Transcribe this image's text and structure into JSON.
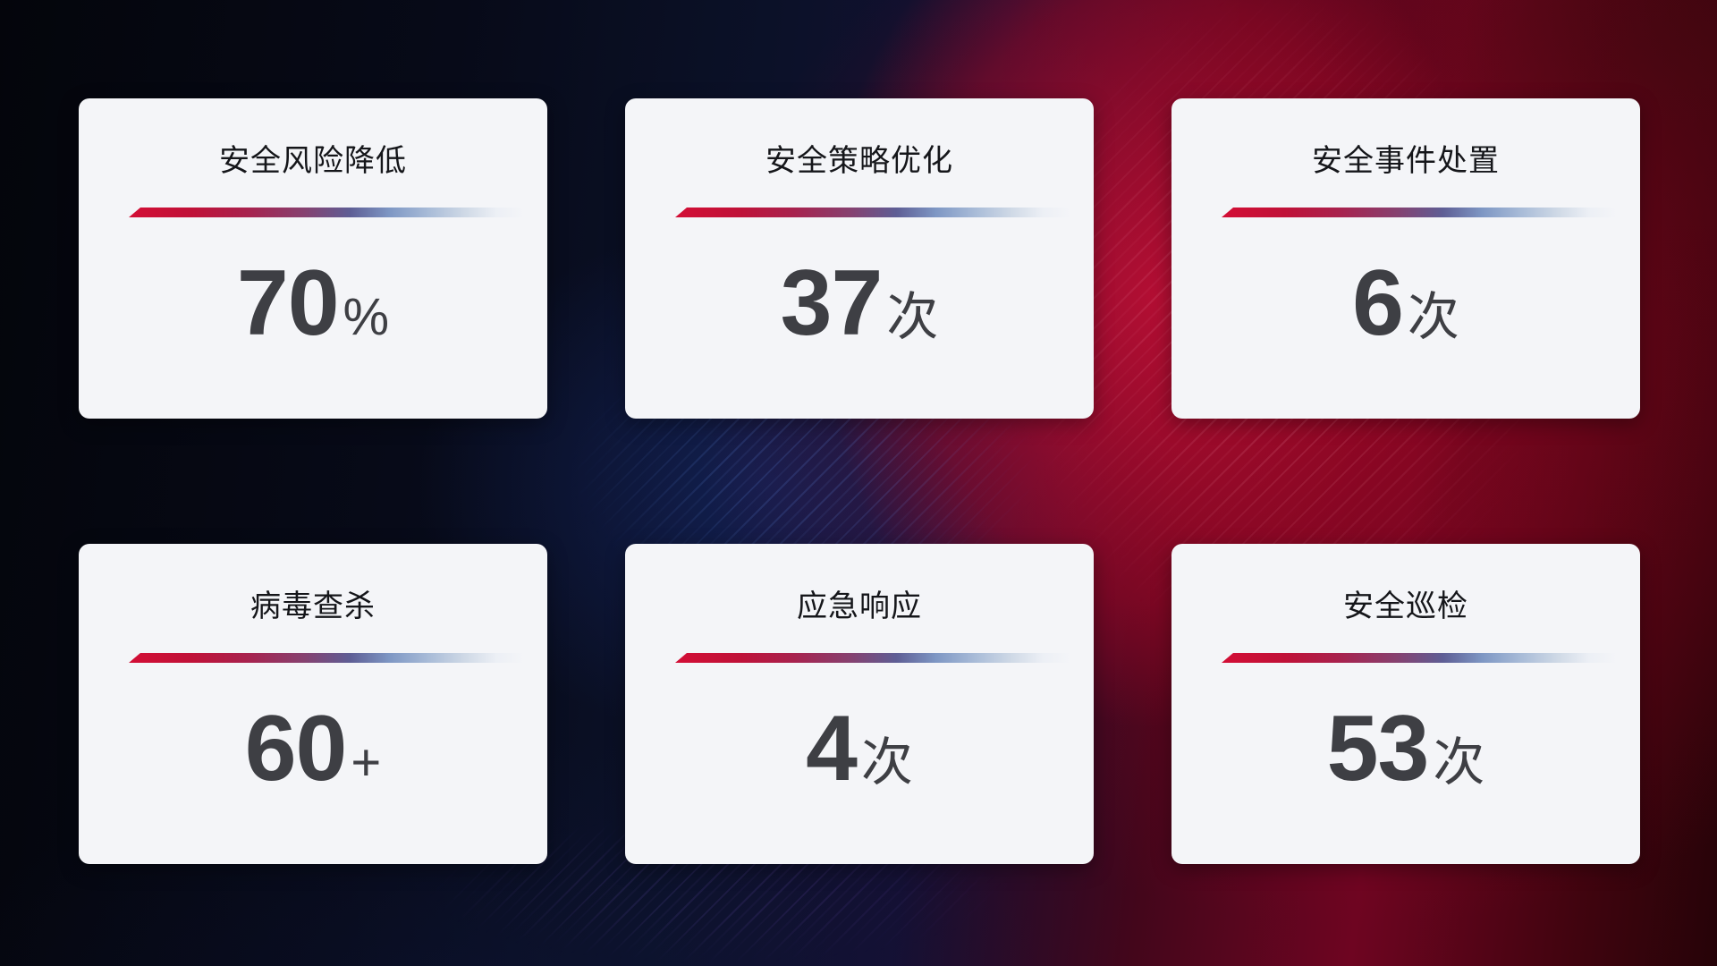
{
  "dashboard": {
    "cards": [
      {
        "title": "安全风险降低",
        "value": "70",
        "unit": "%"
      },
      {
        "title": "安全策略优化",
        "value": "37",
        "unit": "次"
      },
      {
        "title": "安全事件处置",
        "value": "6",
        "unit": "次"
      },
      {
        "title": "病毒查杀",
        "value": "60",
        "unit": "+"
      },
      {
        "title": "应急响应",
        "value": "4",
        "unit": "次"
      },
      {
        "title": "安全巡检",
        "value": "53",
        "unit": "次"
      }
    ],
    "colors": {
      "card_background": "#f4f5f8",
      "title_text": "#15161a",
      "value_text": "#3e3f44",
      "divider_red": "#d30e35",
      "divider_blue": "#a9bcd8",
      "background_navy": "#0b1128",
      "background_crimson": "#9e1038"
    }
  }
}
